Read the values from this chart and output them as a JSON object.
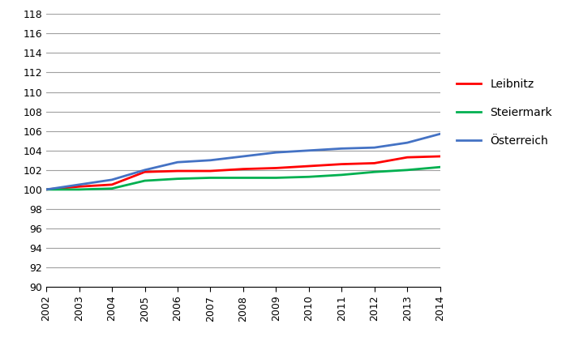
{
  "years": [
    2002,
    2003,
    2004,
    2005,
    2006,
    2007,
    2008,
    2009,
    2010,
    2011,
    2012,
    2013,
    2014
  ],
  "leibnitz": [
    100.0,
    100.3,
    100.5,
    101.8,
    101.9,
    101.9,
    102.1,
    102.2,
    102.4,
    102.6,
    102.7,
    103.3,
    103.4
  ],
  "steiermark": [
    100.0,
    100.0,
    100.1,
    100.9,
    101.1,
    101.2,
    101.2,
    101.2,
    101.3,
    101.5,
    101.8,
    102.0,
    102.3
  ],
  "osterreich": [
    100.0,
    100.5,
    101.0,
    102.0,
    102.8,
    103.0,
    103.4,
    103.8,
    104.0,
    104.2,
    104.3,
    104.8,
    105.7
  ],
  "line_colors": {
    "leibnitz": "#ff0000",
    "steiermark": "#00b050",
    "osterreich": "#4472c4"
  },
  "line_widths": {
    "leibnitz": 2.0,
    "steiermark": 2.0,
    "osterreich": 2.0
  },
  "legend_labels": {
    "leibnitz": "Leibnitz",
    "steiermark": "Steiermark",
    "osterreich": "Österreich"
  },
  "ylim": [
    90,
    118
  ],
  "yticks": [
    90,
    92,
    94,
    96,
    98,
    100,
    102,
    104,
    106,
    108,
    110,
    112,
    114,
    116,
    118
  ],
  "grid_color": "#a0a0a0",
  "grid_linewidth": 0.8,
  "background_color": "#ffffff",
  "legend_fontsize": 10,
  "tick_fontsize": 9
}
